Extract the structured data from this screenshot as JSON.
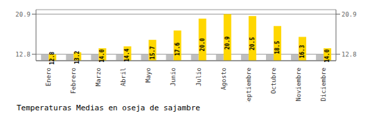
{
  "chart_data": {
    "type": "bar",
    "title": "Temperaturas Medias en oseja de sajambre",
    "categories": [
      "Enero",
      "Febrero",
      "Marzo",
      "Abril",
      "Mayo",
      "Junio",
      "Julio",
      "Agosto",
      "Septiembre",
      "Octubre",
      "Noviembre",
      "Diciembre"
    ],
    "series": [
      {
        "color": "#BEBEBE",
        "values": [
          12.8,
          12.8,
          12.8,
          12.8,
          12.8,
          12.8,
          12.8,
          12.8,
          12.8,
          12.8,
          12.8,
          12.8
        ]
      },
      {
        "color": "#FFD700",
        "values": [
          12.8,
          13.2,
          14.0,
          14.4,
          15.7,
          17.6,
          20.0,
          20.9,
          20.5,
          18.5,
          16.3,
          14.0
        ],
        "value_labels": [
          "12.8",
          "13.2",
          "14.0",
          "14.4",
          "15.7",
          "17.6",
          "20.0",
          "20.9",
          "20.5",
          "18.5",
          "16.3",
          "14.0"
        ]
      }
    ],
    "ylim": [
      11.5,
      21.8
    ],
    "yticks": [
      12.8,
      20.9
    ],
    "y2lim": [
      11.5,
      21.8
    ],
    "y2ticks": [
      12.8,
      20.9
    ],
    "grid": true,
    "data_labels": true
  }
}
